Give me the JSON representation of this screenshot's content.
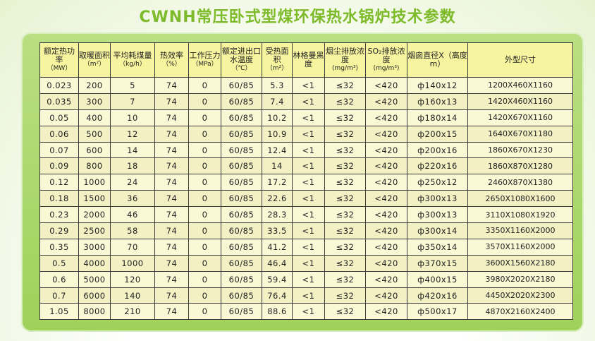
{
  "title": "CWNH常压卧式型煤环保热水锅炉技术参数",
  "headers": [
    {
      "label": "额定热功率",
      "unit": "（MW）"
    },
    {
      "label": "取暖面积",
      "unit": "（m²）"
    },
    {
      "label": "平均耗煤量",
      "unit": "（kg/h）"
    },
    {
      "label": "热效率",
      "unit": "（%）"
    },
    {
      "label": "工作压力",
      "unit": "（MPa）"
    },
    {
      "label": "额定进出口水温度",
      "unit": "（℃）"
    },
    {
      "label": "受热面积",
      "unit": "（m²）"
    },
    {
      "label": "林格曼黑度",
      "unit": ""
    },
    {
      "label": "烟尘排放浓度",
      "unit": "(mg/m³)"
    },
    {
      "label": "SO₂排放浓度",
      "unit": "(mg/m³)"
    },
    {
      "label": "烟囱直径X（高度m）",
      "unit": ""
    },
    {
      "label": "外型尺寸",
      "unit": ""
    }
  ],
  "rows": [
    [
      "0.023",
      "200",
      "5",
      "74",
      "0",
      "60/85",
      "5.3",
      "<1",
      "≤32",
      "<420",
      "ф140x12",
      "1200X460X1160"
    ],
    [
      "0.035",
      "300",
      "7",
      "74",
      "0",
      "60/85",
      "7.4",
      "<1",
      "≤32",
      "<420",
      "ф160x13",
      "1420X460X1160"
    ],
    [
      "0.05",
      "400",
      "10",
      "74",
      "0",
      "60/85",
      "10.2",
      "<1",
      "≤32",
      "<420",
      "ф180x14",
      "1420X670X1160"
    ],
    [
      "0.06",
      "500",
      "12",
      "74",
      "0",
      "60/85",
      "10.9",
      "<1",
      "≤32",
      "<420",
      "ф200x15",
      "1640X670X1180"
    ],
    [
      "0.07",
      "600",
      "14",
      "74",
      "0",
      "60/85",
      "12.4",
      "<1",
      "≤32",
      "<420",
      "ф200x16",
      "1860X670X1230"
    ],
    [
      "0.09",
      "800",
      "18",
      "74",
      "0",
      "60/85",
      "14",
      "<1",
      "≤32",
      "<420",
      "ф220x16",
      "1860X870X1280"
    ],
    [
      "0.12",
      "1000",
      "24",
      "74",
      "0",
      "60/85",
      "17.2",
      "<1",
      "≤32",
      "<420",
      "ф250x12",
      "2460X870X1380"
    ],
    [
      "0.18",
      "1500",
      "36",
      "74",
      "0",
      "60/85",
      "22.6",
      "<1",
      "≤32",
      "<420",
      "ф300x13",
      "2650X1080X1600"
    ],
    [
      "0.23",
      "2000",
      "46",
      "74",
      "0",
      "60/85",
      "28.3",
      "<1",
      "≤32",
      "<420",
      "ф300x13",
      "3110X1080X1920"
    ],
    [
      "0.29",
      "2500",
      "58",
      "74",
      "0",
      "60/85",
      "33.5",
      "<1",
      "≤32",
      "<420",
      "ф300x14",
      "3350X1160X2000"
    ],
    [
      "0.35",
      "3000",
      "70",
      "74",
      "0",
      "60/85",
      "41.2",
      "<1",
      "≤32",
      "<420",
      "ф350x14",
      "3570X1160X2000"
    ],
    [
      "0.5",
      "4000",
      "1000",
      "74",
      "0",
      "60/85",
      "46.4",
      "<1",
      "≤32",
      "<420",
      "ф370x15",
      "3600X1560X2180"
    ],
    [
      "0.6",
      "5000",
      "120",
      "74",
      "0",
      "60/85",
      "59.4",
      "<1",
      "≤32",
      "<420",
      "ф400x15",
      "3980X2020X2180"
    ],
    [
      "0.7",
      "6000",
      "140",
      "74",
      "0",
      "60/85",
      "76.4",
      "<1",
      "≤32",
      "<420",
      "ф420x16",
      "4450X2020X2300"
    ],
    [
      "1.05",
      "8000",
      "210",
      "74",
      "0",
      "60/85",
      "88.6",
      "<1",
      "≤32",
      "<420",
      "ф500x17",
      "4870X2160X2400"
    ]
  ],
  "colors": {
    "title": "#7dbb2a",
    "panel": "#a8d66a",
    "header_bg": "#f7f4a0",
    "cell_bg": "#fbf8d6"
  }
}
